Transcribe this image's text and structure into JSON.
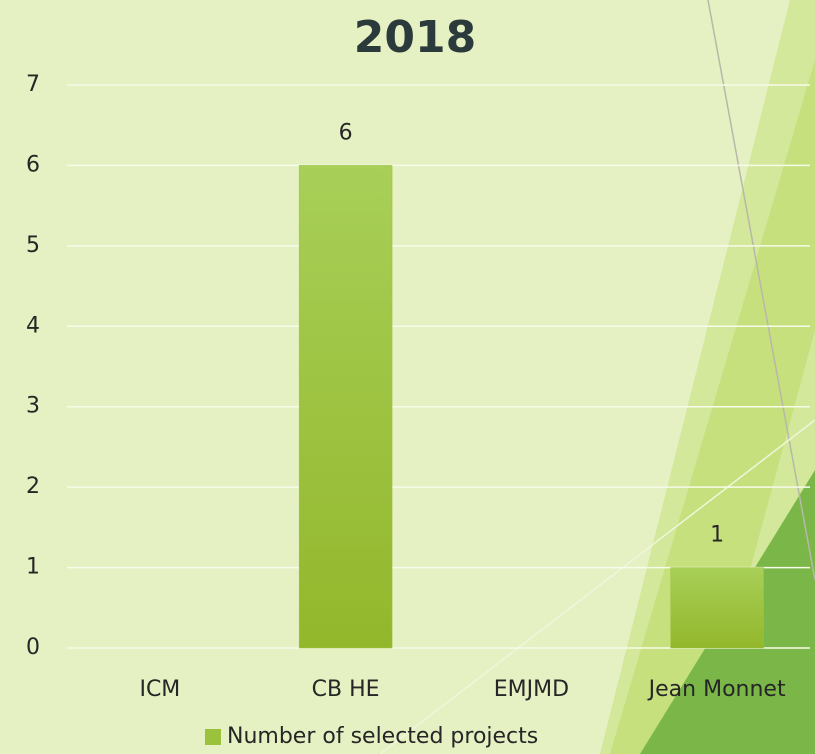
{
  "chart_data": {
    "type": "bar",
    "title": "2018",
    "categories": [
      "ICM",
      "CB HE",
      "EMJMD",
      "Jean Monnet"
    ],
    "series": [
      {
        "name": "Number of selected projects",
        "color": "#9bc23c",
        "values": [
          null,
          6,
          null,
          1
        ]
      }
    ],
    "ylim": [
      0,
      7
    ],
    "yticks": [
      0,
      1,
      2,
      3,
      4,
      5,
      6,
      7
    ],
    "grid": true,
    "legend": "bottom"
  }
}
